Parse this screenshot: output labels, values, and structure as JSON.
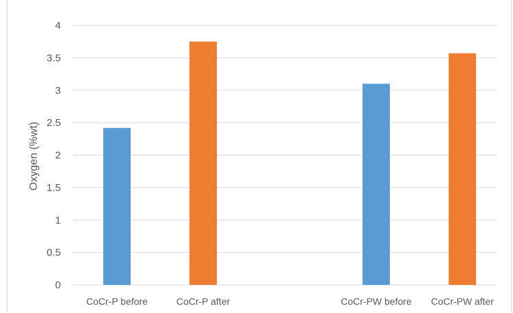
{
  "chart_data": {
    "type": "bar",
    "ylabel": "Oxygen (%wt)",
    "xlabel": "",
    "ylim": [
      0,
      4
    ],
    "yticks": [
      "0",
      "0.5",
      "1",
      "1.5",
      "2",
      "2.5",
      "3",
      "3.5",
      "4"
    ],
    "grid": true,
    "legend": "none",
    "categories": [
      "CoCr-P before",
      "CoCr-P after",
      "CoCr-PW before",
      "CoCr-PW after"
    ],
    "values": [
      2.42,
      3.75,
      3.1,
      3.57
    ],
    "colors": [
      "#5b9bd5",
      "#ed7d31",
      "#5b9bd5",
      "#ed7d31"
    ]
  }
}
